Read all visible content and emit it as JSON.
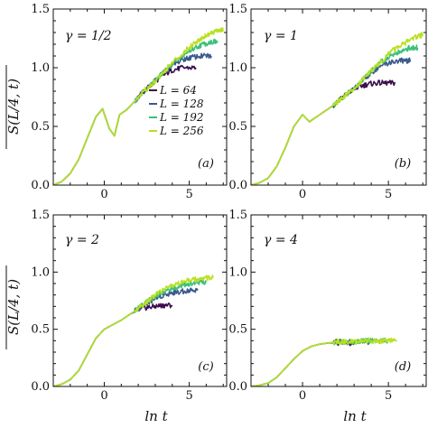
{
  "chart_data": {
    "type": "line",
    "shared": {
      "ylabel": "S(L/4, t)",
      "xlabel": "ln t",
      "xlim": [
        -3.0,
        7.2
      ],
      "ylim": [
        0.0,
        1.5
      ],
      "yticks": [
        "0.0",
        "0.5",
        "1.0",
        "1.5"
      ],
      "legend": {
        "placement": "inside panel (a), center-right",
        "entries": [
          "L = 64",
          "L = 128",
          "L = 192",
          "L = 256"
        ]
      },
      "series_colors": [
        "#3b0f4f",
        "#3b5a8c",
        "#3cbf7a",
        "#b8e020"
      ]
    },
    "panels": [
      {
        "tag": "(a)",
        "gamma_label": "γ = 1/2",
        "xticks": [
          "0",
          "5"
        ],
        "xtick_values": [
          0,
          5
        ],
        "series": [
          {
            "name": "L = 64",
            "x": [
              -3,
              -2.5,
              -2,
              -1.5,
              -1,
              -0.5,
              -0.1,
              0.3,
              0.6,
              0.9,
              1.3,
              1.7,
              2.2,
              2.8,
              3.4,
              4,
              4.6,
              5.4
            ],
            "y": [
              0.0,
              0.03,
              0.1,
              0.22,
              0.4,
              0.58,
              0.65,
              0.48,
              0.42,
              0.6,
              0.64,
              0.7,
              0.78,
              0.86,
              0.93,
              0.98,
              1.0,
              1.0
            ]
          },
          {
            "name": "L = 128",
            "x": [
              -3,
              -2.5,
              -2,
              -1.5,
              -1,
              -0.5,
              -0.1,
              0.3,
              0.6,
              0.9,
              1.3,
              1.7,
              2.2,
              2.8,
              3.4,
              4,
              4.6,
              5.2,
              5.8,
              6.3
            ],
            "y": [
              0.0,
              0.03,
              0.1,
              0.22,
              0.4,
              0.58,
              0.65,
              0.48,
              0.42,
              0.6,
              0.64,
              0.7,
              0.78,
              0.86,
              0.95,
              1.02,
              1.07,
              1.09,
              1.1,
              1.1
            ]
          },
          {
            "name": "L = 192",
            "x": [
              -3,
              -2.5,
              -2,
              -1.5,
              -1,
              -0.5,
              -0.1,
              0.3,
              0.6,
              0.9,
              1.3,
              1.7,
              2.2,
              2.8,
              3.4,
              4,
              4.6,
              5.2,
              5.8,
              6.3,
              6.7
            ],
            "y": [
              0.0,
              0.03,
              0.1,
              0.22,
              0.4,
              0.58,
              0.65,
              0.48,
              0.42,
              0.6,
              0.64,
              0.7,
              0.78,
              0.86,
              0.95,
              1.03,
              1.1,
              1.16,
              1.2,
              1.22,
              1.22
            ]
          },
          {
            "name": "L = 256",
            "x": [
              -3,
              -2.5,
              -2,
              -1.5,
              -1,
              -0.5,
              -0.1,
              0.3,
              0.6,
              0.9,
              1.3,
              1.7,
              2.2,
              2.8,
              3.4,
              4,
              4.6,
              5.2,
              5.8,
              6.3,
              6.8,
              7.0
            ],
            "y": [
              0.0,
              0.03,
              0.1,
              0.22,
              0.4,
              0.58,
              0.65,
              0.48,
              0.42,
              0.6,
              0.64,
              0.7,
              0.78,
              0.86,
              0.95,
              1.04,
              1.12,
              1.2,
              1.26,
              1.3,
              1.32,
              1.32
            ]
          }
        ]
      },
      {
        "tag": "(b)",
        "gamma_label": "γ = 1",
        "xticks": [
          "0",
          "5"
        ],
        "xtick_values": [
          0,
          5
        ],
        "series": [
          {
            "name": "L = 64",
            "x": [
              -3,
              -2.5,
              -2,
              -1.5,
              -1,
              -0.5,
              0,
              0.4,
              0.8,
              1.2,
              1.7,
              2.2,
              2.8,
              3.3,
              3.8,
              4.3,
              4.9,
              5.4
            ],
            "y": [
              0.0,
              0.02,
              0.06,
              0.16,
              0.32,
              0.5,
              0.6,
              0.54,
              0.58,
              0.62,
              0.67,
              0.73,
              0.8,
              0.84,
              0.86,
              0.87,
              0.87,
              0.87
            ]
          },
          {
            "name": "L = 128",
            "x": [
              -3,
              -2.5,
              -2,
              -1.5,
              -1,
              -0.5,
              0,
              0.4,
              0.8,
              1.2,
              1.7,
              2.2,
              2.8,
              3.4,
              4,
              4.6,
              5.2,
              5.8,
              6.3
            ],
            "y": [
              0.0,
              0.02,
              0.06,
              0.16,
              0.32,
              0.5,
              0.6,
              0.54,
              0.58,
              0.62,
              0.67,
              0.73,
              0.8,
              0.88,
              0.96,
              1.02,
              1.05,
              1.06,
              1.06
            ]
          },
          {
            "name": "L = 192",
            "x": [
              -3,
              -2.5,
              -2,
              -1.5,
              -1,
              -0.5,
              0,
              0.4,
              0.8,
              1.2,
              1.7,
              2.2,
              2.8,
              3.4,
              4,
              4.6,
              5.2,
              5.8,
              6.3,
              6.7
            ],
            "y": [
              0.0,
              0.02,
              0.06,
              0.16,
              0.32,
              0.5,
              0.6,
              0.54,
              0.58,
              0.62,
              0.67,
              0.73,
              0.8,
              0.88,
              0.97,
              1.05,
              1.11,
              1.15,
              1.17,
              1.17
            ]
          },
          {
            "name": "L = 256",
            "x": [
              -3,
              -2.5,
              -2,
              -1.5,
              -1,
              -0.5,
              0,
              0.4,
              0.8,
              1.2,
              1.7,
              2.2,
              2.8,
              3.4,
              4,
              4.6,
              5.2,
              5.8,
              6.3,
              6.8,
              7.0
            ],
            "y": [
              0.0,
              0.02,
              0.06,
              0.16,
              0.32,
              0.5,
              0.6,
              0.54,
              0.58,
              0.62,
              0.67,
              0.73,
              0.8,
              0.88,
              0.98,
              1.06,
              1.14,
              1.2,
              1.24,
              1.27,
              1.28
            ]
          }
        ]
      },
      {
        "tag": "(c)",
        "gamma_label": "γ = 2",
        "xticks": [
          "0",
          "5"
        ],
        "xtick_values": [
          0,
          5
        ],
        "series": [
          {
            "name": "L = 64",
            "x": [
              -3,
              -2.5,
              -2,
              -1.5,
              -1,
              -0.5,
              0,
              0.5,
              1,
              1.5,
              2,
              2.5,
              3,
              3.5,
              4
            ],
            "y": [
              0.0,
              0.02,
              0.06,
              0.14,
              0.28,
              0.42,
              0.5,
              0.54,
              0.58,
              0.63,
              0.67,
              0.69,
              0.7,
              0.71,
              0.71
            ]
          },
          {
            "name": "L = 128",
            "x": [
              -3,
              -2.5,
              -2,
              -1.5,
              -1,
              -0.5,
              0,
              0.5,
              1,
              1.5,
              2,
              2.5,
              3,
              3.5,
              4,
              4.5,
              5,
              5.5
            ],
            "y": [
              0.0,
              0.02,
              0.06,
              0.14,
              0.28,
              0.42,
              0.5,
              0.54,
              0.58,
              0.63,
              0.68,
              0.73,
              0.77,
              0.8,
              0.82,
              0.83,
              0.84,
              0.84
            ]
          },
          {
            "name": "L = 192",
            "x": [
              -3,
              -2.5,
              -2,
              -1.5,
              -1,
              -0.5,
              0,
              0.5,
              1,
              1.5,
              2,
              2.5,
              3,
              3.5,
              4,
              4.5,
              5,
              5.5,
              6
            ],
            "y": [
              0.0,
              0.02,
              0.06,
              0.14,
              0.28,
              0.42,
              0.5,
              0.54,
              0.58,
              0.63,
              0.68,
              0.74,
              0.79,
              0.83,
              0.86,
              0.88,
              0.9,
              0.91,
              0.91
            ]
          },
          {
            "name": "L = 256",
            "x": [
              -3,
              -2.5,
              -2,
              -1.5,
              -1,
              -0.5,
              0,
              0.5,
              1,
              1.5,
              2,
              2.5,
              3,
              3.5,
              4,
              4.5,
              5,
              5.5,
              6,
              6.4
            ],
            "y": [
              0.0,
              0.02,
              0.06,
              0.14,
              0.28,
              0.42,
              0.5,
              0.54,
              0.58,
              0.63,
              0.68,
              0.74,
              0.8,
              0.85,
              0.88,
              0.91,
              0.93,
              0.94,
              0.95,
              0.95
            ]
          }
        ]
      },
      {
        "tag": "(d)",
        "gamma_label": "γ = 4",
        "xticks": [
          "0",
          "5"
        ],
        "xtick_values": [
          0,
          5
        ],
        "series": [
          {
            "name": "L = 64",
            "x": [
              -3,
              -2.5,
              -2,
              -1.5,
              -1,
              -0.5,
              0,
              0.5,
              1,
              1.5,
              2,
              2.5,
              3
            ],
            "y": [
              0.0,
              0.01,
              0.03,
              0.08,
              0.16,
              0.24,
              0.31,
              0.35,
              0.37,
              0.38,
              0.38,
              0.38,
              0.38
            ]
          },
          {
            "name": "L = 128",
            "x": [
              -3,
              -2.5,
              -2,
              -1.5,
              -1,
              -0.5,
              0,
              0.5,
              1,
              1.5,
              2,
              2.5,
              3,
              3.5,
              4
            ],
            "y": [
              0.0,
              0.01,
              0.03,
              0.08,
              0.16,
              0.24,
              0.31,
              0.35,
              0.37,
              0.38,
              0.39,
              0.39,
              0.39,
              0.39,
              0.39
            ]
          },
          {
            "name": "L = 192",
            "x": [
              -3,
              -2.5,
              -2,
              -1.5,
              -1,
              -0.5,
              0,
              0.5,
              1,
              1.5,
              2,
              2.5,
              3,
              3.5,
              4,
              4.5,
              5
            ],
            "y": [
              0.0,
              0.01,
              0.03,
              0.08,
              0.16,
              0.24,
              0.31,
              0.35,
              0.37,
              0.38,
              0.39,
              0.39,
              0.39,
              0.4,
              0.4,
              0.4,
              0.4
            ]
          },
          {
            "name": "L = 256",
            "x": [
              -3,
              -2.5,
              -2,
              -1.5,
              -1,
              -0.5,
              0,
              0.5,
              1,
              1.5,
              2,
              2.5,
              3,
              3.5,
              4,
              4.5,
              5,
              5.5
            ],
            "y": [
              0.0,
              0.01,
              0.03,
              0.08,
              0.16,
              0.24,
              0.31,
              0.35,
              0.37,
              0.38,
              0.39,
              0.39,
              0.39,
              0.4,
              0.4,
              0.4,
              0.4,
              0.4
            ]
          }
        ]
      }
    ]
  }
}
